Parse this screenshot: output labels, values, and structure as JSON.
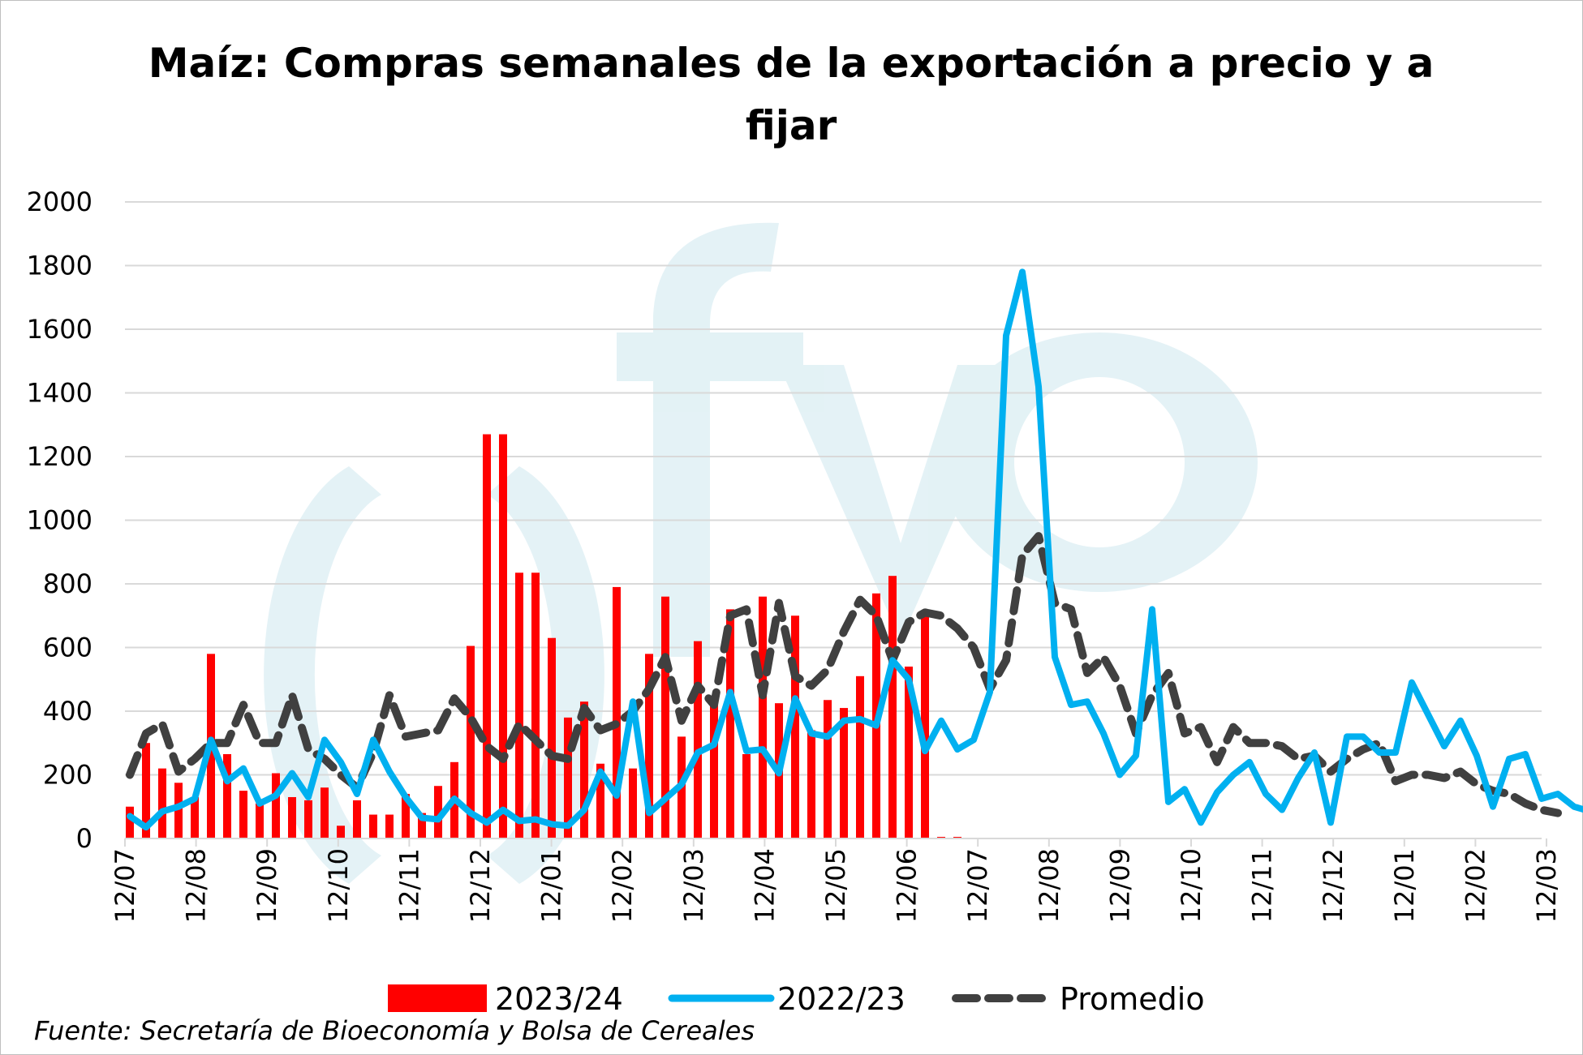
{
  "chart_data": {
    "type": "bar+line",
    "title": "Maíz: Compras semanales de la exportación a precio y a fijar",
    "title_lines": [
      "Maíz: Compras semanales de la exportación a precio y a",
      "fijar"
    ],
    "ylim": [
      0,
      2000
    ],
    "yticks": [
      0,
      200,
      400,
      600,
      800,
      1000,
      1200,
      1400,
      1600,
      1800,
      2000
    ],
    "xtick_labels": [
      "12/07",
      "12/08",
      "12/09",
      "12/10",
      "12/11",
      "12/12",
      "12/01",
      "12/02",
      "12/03",
      "12/04",
      "12/05",
      "12/06",
      "12/07",
      "12/08",
      "12/09",
      "12/10",
      "12/11",
      "12/12",
      "12/01",
      "12/02",
      "12/03"
    ],
    "grid": true,
    "legend_position": "bottom",
    "watermark": "fyo",
    "series": [
      {
        "name": "2023/24",
        "type": "bar",
        "color": "#ff0000",
        "values": [
          100,
          300,
          220,
          175,
          130,
          580,
          265,
          150,
          110,
          205,
          130,
          120,
          160,
          40,
          120,
          75,
          75,
          140,
          80,
          165,
          240,
          605,
          1270,
          1270,
          835,
          835,
          630,
          380,
          430,
          235,
          790,
          220,
          580,
          760,
          320,
          620,
          430,
          720,
          265,
          760,
          425,
          700,
          340,
          435,
          410,
          510,
          770,
          825,
          540,
          700,
          5,
          5
        ]
      },
      {
        "name": "2022/23",
        "type": "line",
        "color": "#00b0f0",
        "values": [
          70,
          35,
          85,
          100,
          125,
          310,
          180,
          220,
          110,
          135,
          205,
          130,
          310,
          240,
          140,
          310,
          210,
          130,
          65,
          60,
          125,
          80,
          50,
          90,
          55,
          60,
          45,
          40,
          90,
          210,
          135,
          430,
          80,
          125,
          170,
          270,
          295,
          460,
          275,
          280,
          205,
          440,
          330,
          320,
          370,
          375,
          355,
          560,
          500,
          275,
          370,
          280,
          310,
          460,
          1580,
          1780,
          1420,
          570,
          420,
          430,
          330,
          200,
          260,
          720,
          115,
          155,
          50,
          145,
          200,
          240,
          140,
          90,
          190,
          270,
          50,
          320,
          320,
          270,
          270,
          490,
          390,
          290,
          370,
          260,
          100,
          250,
          265,
          125,
          140,
          100,
          85
        ]
      },
      {
        "name": "Promedio",
        "type": "line-dashed",
        "color": "#404040",
        "values": [
          200,
          330,
          360,
          210,
          250,
          300,
          300,
          420,
          300,
          300,
          450,
          280,
          250,
          200,
          160,
          270,
          450,
          320,
          330,
          340,
          440,
          380,
          290,
          250,
          360,
          310,
          260,
          250,
          410,
          340,
          360,
          400,
          470,
          570,
          370,
          480,
          420,
          700,
          720,
          450,
          740,
          510,
          480,
          530,
          650,
          750,
          700,
          560,
          680,
          710,
          700,
          660,
          600,
          470,
          560,
          890,
          950,
          740,
          720,
          520,
          570,
          480,
          330,
          450,
          520,
          330,
          350,
          240,
          350,
          300,
          300,
          290,
          250,
          260,
          210,
          250,
          280,
          300,
          180,
          200,
          200,
          190,
          210,
          170,
          150,
          140,
          110,
          90,
          80
        ]
      }
    ],
    "source": "Fuente: Secretaría de Bioeconomía y Bolsa de Cereales"
  }
}
